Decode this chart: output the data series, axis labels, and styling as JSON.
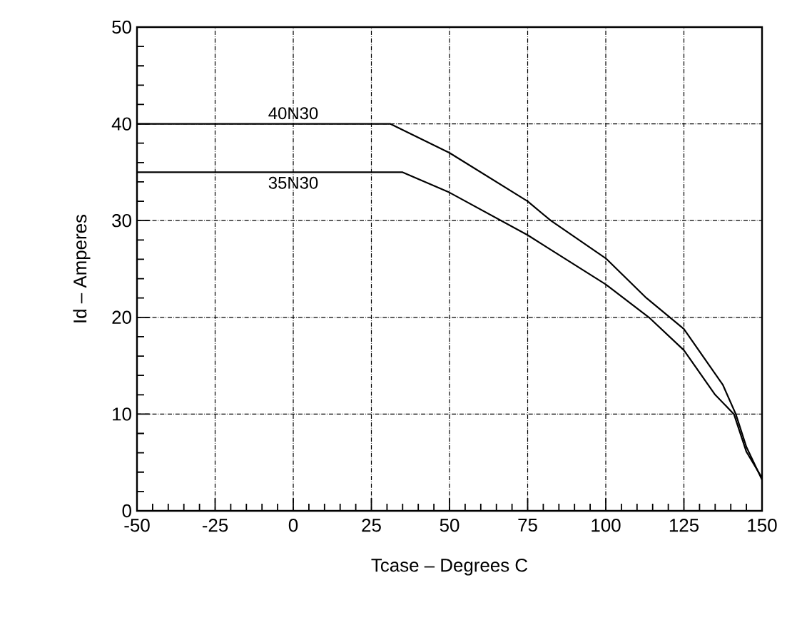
{
  "chart_data": {
    "type": "line",
    "xlabel": "Tcase – Degrees C",
    "ylabel": "Id – Amperes",
    "xlim": [
      -50,
      150
    ],
    "xticks": [
      -50,
      -25,
      0,
      25,
      50,
      75,
      100,
      125,
      150
    ],
    "ylim": [
      0,
      50
    ],
    "yticks": [
      0,
      10,
      20,
      30,
      40,
      50
    ],
    "grid": true,
    "legend": false,
    "marker": "none",
    "line_style": "solid",
    "series": [
      {
        "name": "40N30",
        "color": "#000000",
        "x": [
          -50,
          0,
          31,
          50,
          75,
          82.4,
          100,
          113,
          125,
          137.5,
          141.6,
          145,
          150
        ],
        "values": [
          40,
          40,
          40,
          37,
          32,
          30,
          26.1,
          22,
          18.8,
          13,
          10,
          6.6,
          3.2
        ]
      },
      {
        "name": "35N30",
        "color": "#000000",
        "x": [
          -50,
          0,
          35,
          50,
          75,
          100,
          113.8,
          125,
          135,
          141,
          145,
          150
        ],
        "values": [
          35,
          35,
          35,
          32.9,
          28.5,
          23.4,
          20,
          16.6,
          12,
          10,
          6.1,
          3.4
        ]
      }
    ]
  }
}
